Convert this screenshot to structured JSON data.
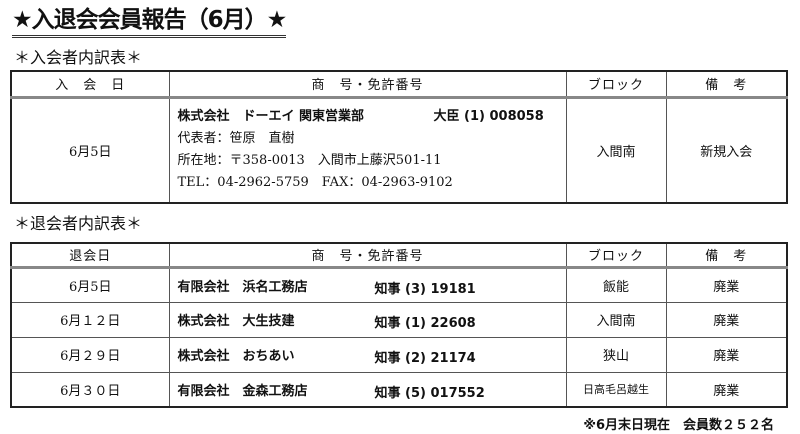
{
  "title": "★入退会会員報告（6月）★",
  "join_section": {
    "heading": "＊入会者内訳表＊",
    "columns": [
      "入　会　日",
      "商　号・免許番号",
      "ブロック",
      "備　考"
    ],
    "rows": [
      {
        "date": "6月5日",
        "company": "株式会社　ドーエイ 関東営業部",
        "license": "大臣 (1) 008058",
        "representative": "代表者：笹原　直樹",
        "address": "所在地：〒358-0013　入間市上藤沢501-11",
        "contact": "TEL：04-2962-5759　FAX：04-2963-9102",
        "block": "入間南",
        "note": "新規入会"
      }
    ]
  },
  "leave_section": {
    "heading": "＊退会者内訳表＊",
    "columns": [
      "退会日",
      "商　号・免許番号",
      "ブロック",
      "備　考"
    ],
    "rows": [
      {
        "date": "6月5日",
        "company": "有限会社　浜名工務店",
        "license": "知事 (3) 19181",
        "block": "飯能",
        "note": "廃業"
      },
      {
        "date": "6月１２日",
        "company": "株式会社　大生技建",
        "license": "知事 (1) 22608",
        "block": "入間南",
        "note": "廃業"
      },
      {
        "date": "6月２９日",
        "company": "株式会社　おちあい",
        "license": "知事 (2) 21174",
        "block": "狭山",
        "note": "廃業"
      },
      {
        "date": "6月３０日",
        "company": "有限会社　金森工務店",
        "license": "知事 (5) 017552",
        "block": "日高毛呂越生",
        "note": "廃業"
      }
    ]
  },
  "footer": "※6月末日現在　会員数２５２名"
}
